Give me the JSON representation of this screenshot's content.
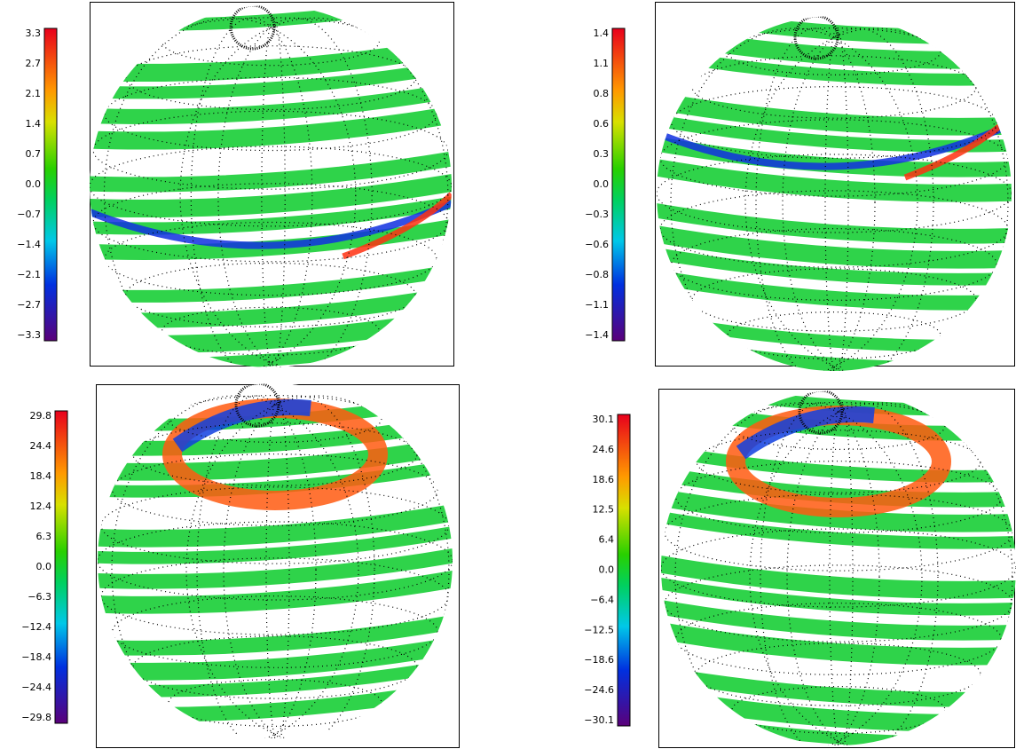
{
  "panels": [
    {
      "colorbar": {
        "labels": [
          "3.3",
          "2.7",
          "2.1",
          "1.4",
          "0.7",
          "0.0",
          "−0.7",
          "−1.4",
          "−2.1",
          "−2.7",
          "−3.3"
        ]
      }
    },
    {
      "colorbar": {
        "labels": [
          "1.4",
          "1.1",
          "0.8",
          "0.6",
          "0.3",
          "0.0",
          "−0.3",
          "−0.6",
          "−0.8",
          "−1.1",
          "−1.4"
        ]
      }
    },
    {
      "colorbar": {
        "labels": [
          "29.8",
          "24.4",
          "18.4",
          "12.4",
          "6.3",
          "0.0",
          "−6.3",
          "−12.4",
          "−18.4",
          "−24.4",
          "−29.8"
        ]
      }
    },
    {
      "colorbar": {
        "labels": [
          "30.1",
          "24.6",
          "18.6",
          "12.5",
          "6.4",
          "0.0",
          "−6.4",
          "−12.5",
          "−18.6",
          "−24.6",
          "−30.1"
        ]
      }
    }
  ]
}
